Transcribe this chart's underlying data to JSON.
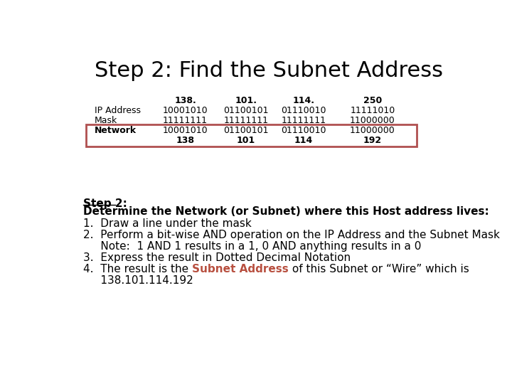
{
  "title": "Step 2: Find the Subnet Address",
  "title_fontsize": 22,
  "title_fontweight": "normal",
  "bg_color": "#ffffff",
  "table": {
    "col_headers": [
      "",
      "138.",
      "101.",
      "114.",
      "250"
    ],
    "rows": [
      {
        "label": "IP Address",
        "label_bold": false,
        "cols": [
          "10001010",
          "01100101",
          "01110010",
          "11111010"
        ],
        "decimal_bold": false
      },
      {
        "label": "Mask",
        "label_bold": false,
        "cols": [
          "11111111",
          "11111111",
          "11111111",
          "11000000"
        ],
        "decimal_bold": false
      },
      {
        "label": "Network",
        "label_bold": true,
        "cols": [
          "10001010",
          "01100101",
          "01110010",
          "11000000"
        ],
        "decimal_bold": false
      },
      {
        "label": "",
        "label_bold": false,
        "cols": [
          "138",
          "101",
          "114",
          "192"
        ],
        "decimal_bold": true
      }
    ],
    "network_box_color": "#b05050",
    "header_fontsize": 9,
    "row_fontsize": 9
  },
  "step2_heading": "Step 2:",
  "body_lines": [
    {
      "bold": true,
      "text": "Determine the Network (or Subnet) where this Host address lives:"
    },
    {
      "bold": false,
      "text": "1.  Draw a line under the mask"
    },
    {
      "bold": false,
      "text": "2.  Perform a bit-wise AND operation on the IP Address and the Subnet Mask"
    },
    {
      "bold": false,
      "text": "     Note:  1 AND 1 results in a 1, 0 AND anything results in a 0"
    },
    {
      "bold": false,
      "text": "3.  Express the result in Dotted Decimal Notation"
    },
    {
      "bold": false,
      "text_parts": [
        {
          "text": "4.  The result is the ",
          "color": "#000000",
          "bold": false
        },
        {
          "text": "Subnet Address",
          "color": "#b85040",
          "bold": true
        },
        {
          "text": " of this Subnet or “Wire” which is",
          "color": "#000000",
          "bold": false
        }
      ]
    },
    {
      "bold": false,
      "text": "     138.101.114.192"
    }
  ],
  "body_fontsize": 11
}
